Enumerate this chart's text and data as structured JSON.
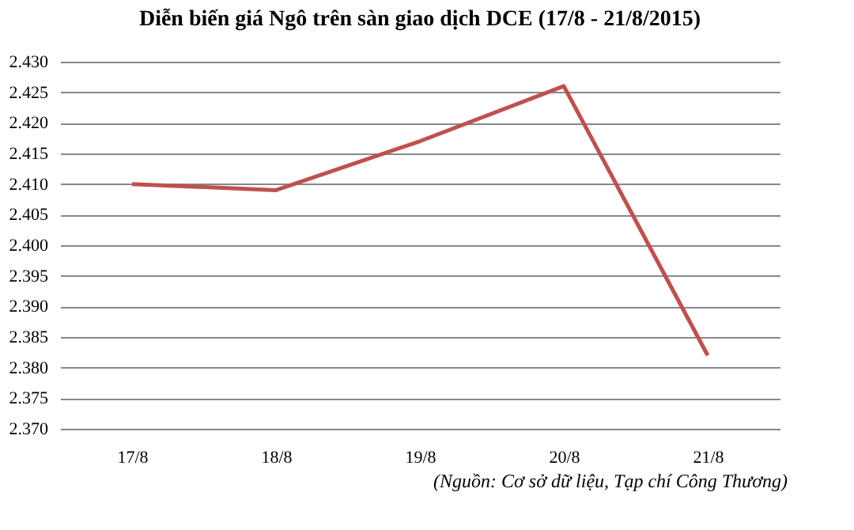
{
  "chart_data": {
    "type": "line",
    "title": "Diễn biến giá Ngô trên sàn giao dịch DCE (17/8 - 21/8/2015)",
    "categories": [
      "17/8",
      "18/8",
      "19/8",
      "20/8",
      "21/8"
    ],
    "series": [
      {
        "color": "#c0504d",
        "values": [
          2410,
          2409,
          2417,
          2426,
          2382
        ]
      }
    ],
    "ylim": [
      2370,
      2430
    ],
    "yticks": [
      {
        "value": 2370,
        "label": "2.370"
      },
      {
        "value": 2375,
        "label": "2.375"
      },
      {
        "value": 2380,
        "label": "2.380"
      },
      {
        "value": 2385,
        "label": "2.385"
      },
      {
        "value": 2390,
        "label": "2.390"
      },
      {
        "value": 2395,
        "label": "2.395"
      },
      {
        "value": 2400,
        "label": "2.400"
      },
      {
        "value": 2405,
        "label": "2.405"
      },
      {
        "value": 2410,
        "label": "2.410"
      },
      {
        "value": 2415,
        "label": "2.415"
      },
      {
        "value": 2420,
        "label": "2.420"
      },
      {
        "value": 2425,
        "label": "2.425"
      },
      {
        "value": 2430,
        "label": "2.430"
      }
    ],
    "grid": "y",
    "annotations": [
      "(Nguồn: Cơ sở dữ liệu, Tạp chí Công Thương)"
    ]
  }
}
